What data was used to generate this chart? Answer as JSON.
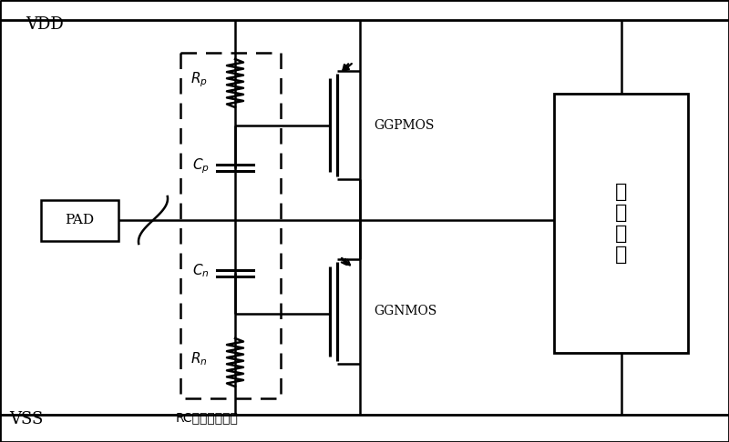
{
  "bg_color": "#ffffff",
  "line_color": "#000000",
  "vdd_label": "VDD",
  "vss_label": "VSS",
  "pad_label": "PAD",
  "rc_label": "RC触发控制电路",
  "inner_label": "内\n部\n电\n路",
  "ggpmos_label": "GGPMOS",
  "ggnmos_label": "GGNMOS",
  "figsize": [
    8.0,
    4.86
  ],
  "dpi": 100
}
